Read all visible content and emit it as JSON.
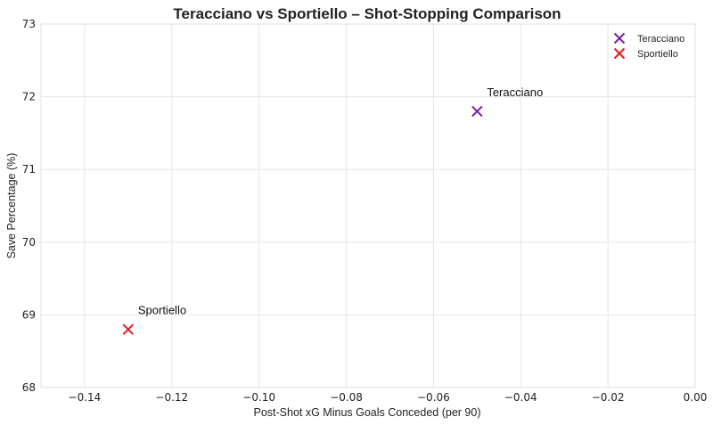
{
  "chart_data": {
    "type": "scatter",
    "title": "Teracciano vs Sportiello – Shot-Stopping Comparison",
    "xlabel": "Post-Shot xG Minus Goals Conceded (per 90)",
    "ylabel": "Save Percentage (%)",
    "xlim": [
      -0.15,
      0.0
    ],
    "ylim": [
      68,
      73
    ],
    "xticks": [
      -0.14,
      -0.12,
      -0.1,
      -0.08,
      -0.06,
      -0.04,
      -0.02,
      0.0
    ],
    "xtick_labels": [
      "−0.14",
      "−0.12",
      "−0.10",
      "−0.08",
      "−0.06",
      "−0.04",
      "−0.02",
      "0.00"
    ],
    "yticks": [
      68,
      69,
      70,
      71,
      72,
      73
    ],
    "ytick_labels": [
      "68",
      "69",
      "70",
      "71",
      "72",
      "73"
    ],
    "grid": true,
    "legend_position": "top-right",
    "marker": "x",
    "series": [
      {
        "name": "Teracciano",
        "color": "#7b1fa2",
        "x": [
          -0.05
        ],
        "y": [
          71.8
        ],
        "annotation": "Teracciano"
      },
      {
        "name": "Sportiello",
        "color": "#e41a1c",
        "x": [
          -0.13
        ],
        "y": [
          68.8
        ],
        "annotation": "Sportiello"
      }
    ]
  }
}
